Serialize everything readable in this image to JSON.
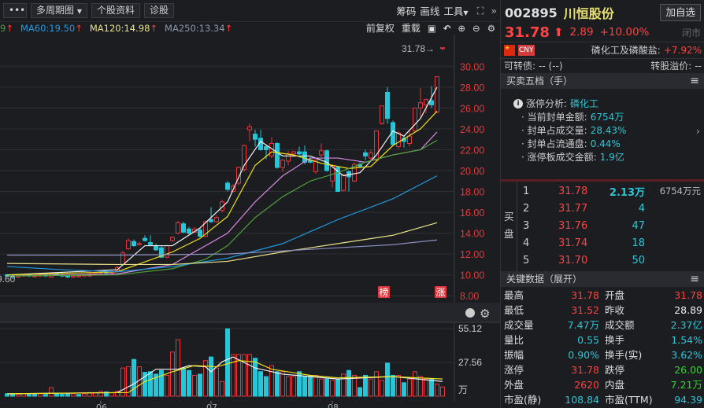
{
  "toolbar": {
    "more": "•••",
    "multi_period": "多周期图",
    "multi_period_arrow": "▼",
    "profile": "个股资料",
    "diagnose": "诊股",
    "chips": "筹码",
    "draw": "画线",
    "tools": "工具",
    "tools_arrow": "▼",
    "fullscreen": "⛶",
    "collapse": "»"
  },
  "ma_bar": {
    "ma_partial": "9",
    "ma60": "MA60:19.50",
    "ma120": "MA120:14.98",
    "ma250": "MA250:13.34",
    "arrow": "↑",
    "adjust": "前复权",
    "reload": "重载"
  },
  "chart": {
    "last_price_label": "31.78→",
    "low_label": "9.60",
    "badge_rank": "榜",
    "badge_limit": "涨",
    "price_axis": [
      "30.00",
      "28.00",
      "26.00",
      "24.00",
      "22.00",
      "20.00",
      "18.00",
      "16.00",
      "14.00",
      "12.00",
      "10.00",
      "8.00"
    ],
    "volume_axis": [
      "55.12",
      "27.56",
      "万"
    ],
    "months": [
      {
        "label": "06",
        "i": 17
      },
      {
        "label": "07",
        "i": 37
      },
      {
        "label": "08",
        "i": 59
      }
    ],
    "colors": {
      "up": "#e8353b",
      "down": "#25c6d8",
      "ma5": "#f2f2f2",
      "ma10": "#f0e21a",
      "ma20": "#d987e0",
      "ma30": "#4fa03a",
      "ma60": "#1f9be0",
      "ma120": "#e7e08a",
      "ma250": "#8c8fc0"
    },
    "ohlc": [
      [
        10.0,
        10.1,
        9.8,
        9.9
      ],
      [
        9.9,
        10.0,
        9.6,
        9.8
      ],
      [
        9.8,
        10.0,
        9.7,
        9.9
      ],
      [
        9.9,
        10.1,
        9.8,
        10.0
      ],
      [
        10.0,
        10.1,
        9.8,
        9.9
      ],
      [
        9.9,
        10.0,
        9.8,
        9.9
      ],
      [
        9.9,
        10.1,
        9.8,
        10.0
      ],
      [
        10.0,
        10.1,
        9.8,
        9.9
      ],
      [
        9.8,
        10.2,
        9.7,
        10.1
      ],
      [
        10.1,
        10.2,
        9.9,
        10.0
      ],
      [
        10.0,
        10.1,
        9.8,
        9.9
      ],
      [
        9.9,
        10.0,
        9.7,
        9.8
      ],
      [
        9.8,
        10.0,
        9.7,
        9.9
      ],
      [
        9.9,
        10.0,
        9.8,
        9.9
      ],
      [
        9.9,
        10.1,
        9.8,
        10.0
      ],
      [
        9.9,
        10.2,
        9.8,
        10.1
      ],
      [
        10.1,
        10.3,
        10.0,
        10.2
      ],
      [
        10.2,
        10.4,
        10.1,
        10.3
      ],
      [
        10.3,
        10.4,
        10.1,
        10.2
      ],
      [
        10.2,
        10.4,
        10.1,
        10.3
      ],
      [
        10.4,
        10.9,
        10.3,
        10.7
      ],
      [
        11.0,
        12.3,
        10.9,
        12.1
      ],
      [
        12.5,
        13.5,
        12.4,
        13.3
      ],
      [
        13.2,
        13.4,
        12.7,
        12.8
      ],
      [
        12.9,
        13.2,
        12.8,
        13.0
      ],
      [
        13.5,
        13.8,
        13.2,
        13.3
      ],
      [
        13.1,
        13.8,
        12.8,
        12.9
      ],
      [
        12.8,
        13.0,
        12.3,
        12.4
      ],
      [
        12.6,
        12.8,
        11.6,
        11.7
      ],
      [
        11.7,
        12.9,
        11.6,
        12.8
      ],
      [
        13.3,
        13.7,
        13.2,
        13.6
      ],
      [
        14.0,
        15.2,
        13.9,
        15.0
      ],
      [
        14.9,
        15.1,
        14.0,
        14.1
      ],
      [
        14.4,
        14.6,
        13.9,
        14.0
      ],
      [
        14.1,
        14.6,
        14.0,
        14.4
      ],
      [
        14.3,
        14.5,
        13.6,
        13.7
      ],
      [
        13.7,
        15.2,
        13.6,
        15.1
      ],
      [
        15.3,
        16.5,
        15.0,
        15.1
      ],
      [
        15.1,
        15.7,
        15.0,
        15.5
      ],
      [
        16.2,
        17.2,
        16.0,
        17.0
      ],
      [
        18.8,
        19.0,
        18.0,
        18.2
      ],
      [
        18.0,
        18.7,
        17.9,
        18.5
      ],
      [
        18.8,
        20.4,
        18.6,
        20.3
      ],
      [
        20.1,
        22.5,
        19.9,
        22.4
      ],
      [
        23.9,
        24.5,
        22.8,
        24.2
      ],
      [
        23.5,
        23.9,
        22.3,
        23.0
      ],
      [
        23.1,
        23.9,
        21.9,
        22.0
      ],
      [
        22.3,
        22.4,
        21.1,
        22.0
      ],
      [
        21.4,
        23.2,
        21.2,
        22.6
      ],
      [
        22.6,
        22.7,
        20.2,
        20.3
      ],
      [
        20.3,
        21.1,
        19.9,
        21.0
      ],
      [
        20.9,
        21.9,
        20.5,
        21.6
      ],
      [
        21.6,
        21.9,
        21.3,
        21.8
      ],
      [
        21.8,
        22.3,
        21.5,
        21.6
      ],
      [
        21.8,
        22.4,
        20.6,
        20.8
      ],
      [
        21.0,
        21.3,
        20.7,
        20.8
      ],
      [
        19.9,
        21.1,
        19.7,
        21.0
      ],
      [
        21.5,
        22.6,
        21.3,
        21.9
      ],
      [
        21.9,
        22.0,
        19.9,
        20.0
      ],
      [
        19.0,
        20.6,
        18.4,
        20.5
      ],
      [
        20.3,
        20.4,
        18.0,
        18.0
      ],
      [
        18.1,
        19.7,
        18.0,
        19.6
      ],
      [
        19.9,
        20.0,
        18.0,
        19.4
      ],
      [
        19.0,
        20.8,
        18.9,
        20.6
      ],
      [
        20.6,
        20.8,
        20.3,
        20.4
      ],
      [
        21.7,
        22.0,
        21.0,
        21.4
      ],
      [
        21.2,
        22.0,
        21.0,
        21.7
      ],
      [
        21.0,
        23.8,
        20.9,
        23.8
      ],
      [
        24.5,
        26.2,
        24.4,
        26.2
      ],
      [
        27.5,
        28.0,
        24.5,
        25.0
      ],
      [
        24.6,
        24.8,
        22.4,
        22.5
      ],
      [
        22.3,
        23.8,
        22.1,
        23.6
      ],
      [
        23.1,
        23.3,
        22.2,
        22.8
      ],
      [
        22.6,
        23.9,
        22.3,
        23.3
      ],
      [
        23.8,
        26.0,
        23.7,
        26.0
      ],
      [
        26.0,
        27.9,
        25.0,
        26.5
      ],
      [
        26.3,
        26.9,
        25.5,
        26.8
      ],
      [
        26.7,
        28.1,
        26.0,
        26.3
      ],
      [
        25.6,
        29.0,
        25.5,
        29.0
      ],
      [
        31.78,
        31.78,
        31.52,
        31.78
      ]
    ],
    "ma": {
      "ma5": [
        [
          0,
          10.0
        ],
        [
          20,
          10.5
        ],
        [
          25,
          12.8
        ],
        [
          30,
          12.8
        ],
        [
          35,
          14.5
        ],
        [
          40,
          17.0
        ],
        [
          43,
          20.5
        ],
        [
          46,
          22.8
        ],
        [
          50,
          21.4
        ],
        [
          55,
          21.4
        ],
        [
          58,
          20.8
        ],
        [
          61,
          19.5
        ],
        [
          64,
          19.8
        ],
        [
          67,
          21.5
        ],
        [
          70,
          23.8
        ],
        [
          72,
          23.3
        ],
        [
          75,
          25.0
        ],
        [
          78,
          28.0
        ]
      ],
      "ma10": [
        [
          0,
          10.0
        ],
        [
          20,
          10.3
        ],
        [
          30,
          12.2
        ],
        [
          35,
          13.5
        ],
        [
          40,
          15.6
        ],
        [
          45,
          20.5
        ],
        [
          48,
          21.8
        ],
        [
          52,
          21.5
        ],
        [
          57,
          20.7
        ],
        [
          62,
          20.2
        ],
        [
          66,
          20.4
        ],
        [
          70,
          22.4
        ],
        [
          75,
          24.0
        ],
        [
          78,
          25.7
        ]
      ],
      "ma20": [
        [
          0,
          9.9
        ],
        [
          20,
          10.1
        ],
        [
          30,
          11.0
        ],
        [
          40,
          14.0
        ],
        [
          45,
          17.0
        ],
        [
          50,
          19.5
        ],
        [
          55,
          21.2
        ],
        [
          60,
          21.2
        ],
        [
          65,
          20.8
        ],
        [
          70,
          21.5
        ],
        [
          75,
          22.0
        ],
        [
          78,
          23.7
        ]
      ],
      "ma30": [
        [
          0,
          9.9
        ],
        [
          20,
          10.0
        ],
        [
          30,
          10.6
        ],
        [
          36,
          11.5
        ],
        [
          40,
          12.8
        ],
        [
          45,
          15.5
        ],
        [
          50,
          17.5
        ],
        [
          55,
          19.0
        ],
        [
          60,
          19.8
        ],
        [
          65,
          20.8
        ],
        [
          70,
          21.5
        ],
        [
          75,
          22.0
        ],
        [
          78,
          22.9
        ]
      ],
      "ma60": [
        [
          0,
          10.8
        ],
        [
          10,
          10.5
        ],
        [
          20,
          10.3
        ],
        [
          30,
          10.8
        ],
        [
          40,
          11.6
        ],
        [
          50,
          13.0
        ],
        [
          60,
          15.3
        ],
        [
          70,
          17.3
        ],
        [
          78,
          19.5
        ]
      ],
      "ma120": [
        [
          0,
          11.1
        ],
        [
          20,
          11.0
        ],
        [
          30,
          11.0
        ],
        [
          40,
          11.3
        ],
        [
          50,
          12.2
        ],
        [
          60,
          13.0
        ],
        [
          70,
          13.8
        ],
        [
          78,
          15.0
        ]
      ],
      "ma250": [
        [
          0,
          11.9
        ],
        [
          20,
          11.9
        ],
        [
          40,
          12.0
        ],
        [
          50,
          12.3
        ],
        [
          60,
          12.6
        ],
        [
          70,
          12.9
        ],
        [
          78,
          13.35
        ]
      ]
    },
    "volume": [
      2,
      2,
      1.5,
      2,
      1.5,
      2,
      2,
      1.5,
      7,
      2,
      1.5,
      2,
      2,
      1.5,
      2,
      3,
      3,
      4,
      3.5,
      3,
      4,
      23,
      24,
      30,
      24,
      19.5,
      20,
      18,
      21,
      17,
      36,
      46,
      23,
      21,
      17,
      18,
      29,
      32,
      23,
      12,
      55,
      34,
      34,
      34,
      34,
      31,
      20,
      16,
      25,
      20,
      20,
      16,
      16,
      20,
      16,
      17,
      17,
      14,
      14,
      13,
      14,
      18,
      21,
      17,
      7,
      17,
      14,
      20,
      13,
      27,
      17,
      17,
      11,
      14,
      20,
      16,
      14,
      14,
      10,
      7.5
    ],
    "vol_ma5": [
      [
        0,
        2
      ],
      [
        20,
        3
      ],
      [
        23,
        10
      ],
      [
        27,
        22
      ],
      [
        31,
        22
      ],
      [
        33,
        25
      ],
      [
        36,
        24
      ],
      [
        37,
        20
      ],
      [
        39,
        28
      ],
      [
        41,
        32
      ],
      [
        45,
        23
      ],
      [
        50,
        18
      ],
      [
        60,
        14
      ],
      [
        70,
        16
      ],
      [
        79,
        12
      ]
    ],
    "vol_ma10": [
      [
        0,
        2
      ],
      [
        22,
        3
      ],
      [
        25,
        12
      ],
      [
        30,
        20
      ],
      [
        34,
        25
      ],
      [
        38,
        24
      ],
      [
        42,
        29
      ],
      [
        45,
        28
      ],
      [
        48,
        22
      ],
      [
        55,
        17
      ],
      [
        60,
        15
      ],
      [
        70,
        16
      ],
      [
        79,
        14
      ]
    ]
  },
  "quote": {
    "code": "002895",
    "name": "川恒股份",
    "add_watch": "加自选",
    "price": "31.78",
    "arrow": "⬆",
    "change": "2.89",
    "change_pct": "+10.00%",
    "status": "闭市",
    "currency": "CNY",
    "sector": "磷化工及磷酸盐:",
    "sector_pct": "+7.92%",
    "cb_label": "可转债:",
    "cb_value": "-- (--)",
    "premium_label": "转股溢价:",
    "premium_value": "--"
  },
  "order_book": {
    "title": "买卖五档（手）",
    "analysis": {
      "label": "涨停分析:",
      "sector": "磷化工",
      "items": [
        {
          "k": "当前封单金额:",
          "v": "6754万"
        },
        {
          "k": "封单占成交量:",
          "v": "28.43%"
        },
        {
          "k": "封单占流通盘:",
          "v": "0.44%"
        },
        {
          "k": "涨停板成交金额:",
          "v": "1.9亿"
        }
      ]
    },
    "side_label": "买盘",
    "bids": [
      {
        "n": "1",
        "p": "31.78",
        "v": "2.13万",
        "amt": "6754万元"
      },
      {
        "n": "2",
        "p": "31.77",
        "v": "4"
      },
      {
        "n": "3",
        "p": "31.76",
        "v": "47"
      },
      {
        "n": "4",
        "p": "31.74",
        "v": "18"
      },
      {
        "n": "5",
        "p": "31.70",
        "v": "50"
      }
    ]
  },
  "key_data": {
    "title": "关键数据（展开）",
    "rows": [
      [
        {
          "k": "最高",
          "v": "31.78",
          "c": "red"
        },
        {
          "k": "开盘",
          "v": "31.78",
          "c": "red"
        }
      ],
      [
        {
          "k": "最低",
          "v": "31.52",
          "c": "red"
        },
        {
          "k": "昨收",
          "v": "28.89",
          "c": "white"
        }
      ],
      [
        {
          "k": "成交量",
          "v": "7.47万",
          "c": "cyan"
        },
        {
          "k": "成交额",
          "v": "2.37亿",
          "c": "cyan"
        }
      ],
      [
        {
          "k": "量比",
          "v": "0.55",
          "c": "cyan"
        },
        {
          "k": "换手",
          "v": "1.54%",
          "c": "cyan"
        }
      ],
      [
        {
          "k": "振幅",
          "v": "0.90%",
          "c": "cyan"
        },
        {
          "k": "换手(实)",
          "v": "3.62%",
          "c": "cyan"
        }
      ],
      [
        {
          "k": "涨停",
          "v": "31.78",
          "c": "red"
        },
        {
          "k": "跌停",
          "v": "26.00",
          "c": "green"
        }
      ],
      [
        {
          "k": "外盘",
          "v": "2620",
          "c": "red"
        },
        {
          "k": "内盘",
          "v": "7.21万",
          "c": "green"
        }
      ],
      [
        {
          "k": "市盈(静)",
          "v": "108.84",
          "c": "cyan"
        },
        {
          "k": "市盈(TTM)",
          "v": "94.39",
          "c": "cyan"
        }
      ]
    ]
  }
}
